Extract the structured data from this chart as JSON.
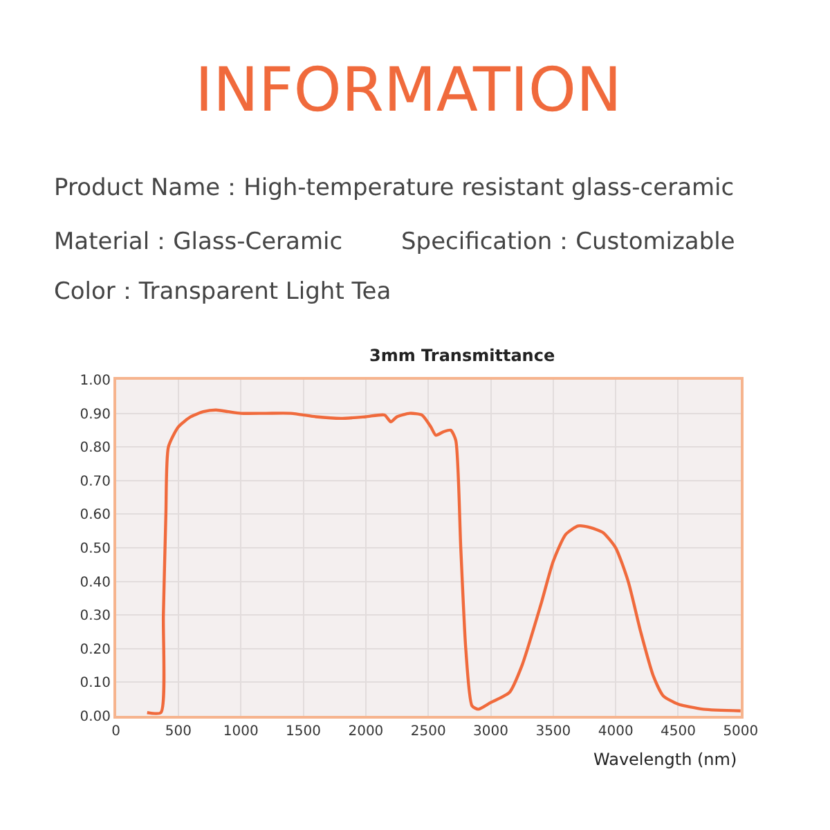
{
  "chart_data": {
    "type": "line",
    "title": "3mm Transmittance",
    "xlabel": "Wavelength (nm)",
    "annotations": [
      "INFORMATION",
      "Product Name：High-temperature resistant glass-ceramic",
      "Material：Glass-Ceramic",
      "Specification：Customizable",
      "Color：Transparent Light Tea"
    ],
    "series": [
      {
        "color": "#f06a3c",
        "x": [
          250,
          360,
          380,
          400,
          420,
          500,
          600,
          700,
          800,
          900,
          1000,
          1200,
          1400,
          1600,
          1800,
          2000,
          2150,
          2200,
          2250,
          2350,
          2450,
          2520,
          2560,
          2620,
          2680,
          2720,
          2760,
          2800,
          2850,
          2900,
          3000,
          3150,
          3250,
          3400,
          3500,
          3600,
          3700,
          3800,
          3900,
          4000,
          4100,
          4200,
          4300,
          4380,
          4500,
          4700,
          5000
        ],
        "values": [
          0.01,
          0.01,
          0.3,
          0.6,
          0.8,
          0.86,
          0.89,
          0.905,
          0.91,
          0.905,
          0.9,
          0.9,
          0.9,
          0.89,
          0.885,
          0.89,
          0.895,
          0.875,
          0.89,
          0.9,
          0.895,
          0.86,
          0.835,
          0.845,
          0.85,
          0.82,
          0.5,
          0.2,
          0.03,
          0.02,
          0.04,
          0.07,
          0.15,
          0.33,
          0.46,
          0.54,
          0.565,
          0.56,
          0.545,
          0.5,
          0.4,
          0.25,
          0.12,
          0.06,
          0.035,
          0.02,
          0.015
        ]
      }
    ],
    "xlim": [
      0,
      5000
    ],
    "xticks": [
      0,
      500,
      1000,
      1500,
      2000,
      2500,
      3000,
      3500,
      4000,
      4500,
      5000
    ],
    "ylim": [
      0,
      1
    ],
    "yticks": [
      {
        "value": 0,
        "label": "0.00"
      },
      {
        "value": 0.1,
        "label": "0.10"
      },
      {
        "value": 0.2,
        "label": "0.20"
      },
      {
        "value": 0.3,
        "label": "0.30"
      },
      {
        "value": 0.4,
        "label": "0.40"
      },
      {
        "value": 0.5,
        "label": "0.50"
      },
      {
        "value": 0.6,
        "label": "0.60"
      },
      {
        "value": 0.7,
        "label": "0.70"
      },
      {
        "value": 0.8,
        "label": "0.80"
      },
      {
        "value": 0.9,
        "label": "0.90"
      },
      {
        "value": 1,
        "label": "1.00"
      }
    ],
    "grid": true,
    "marker": "none",
    "line_style": "solid"
  }
}
